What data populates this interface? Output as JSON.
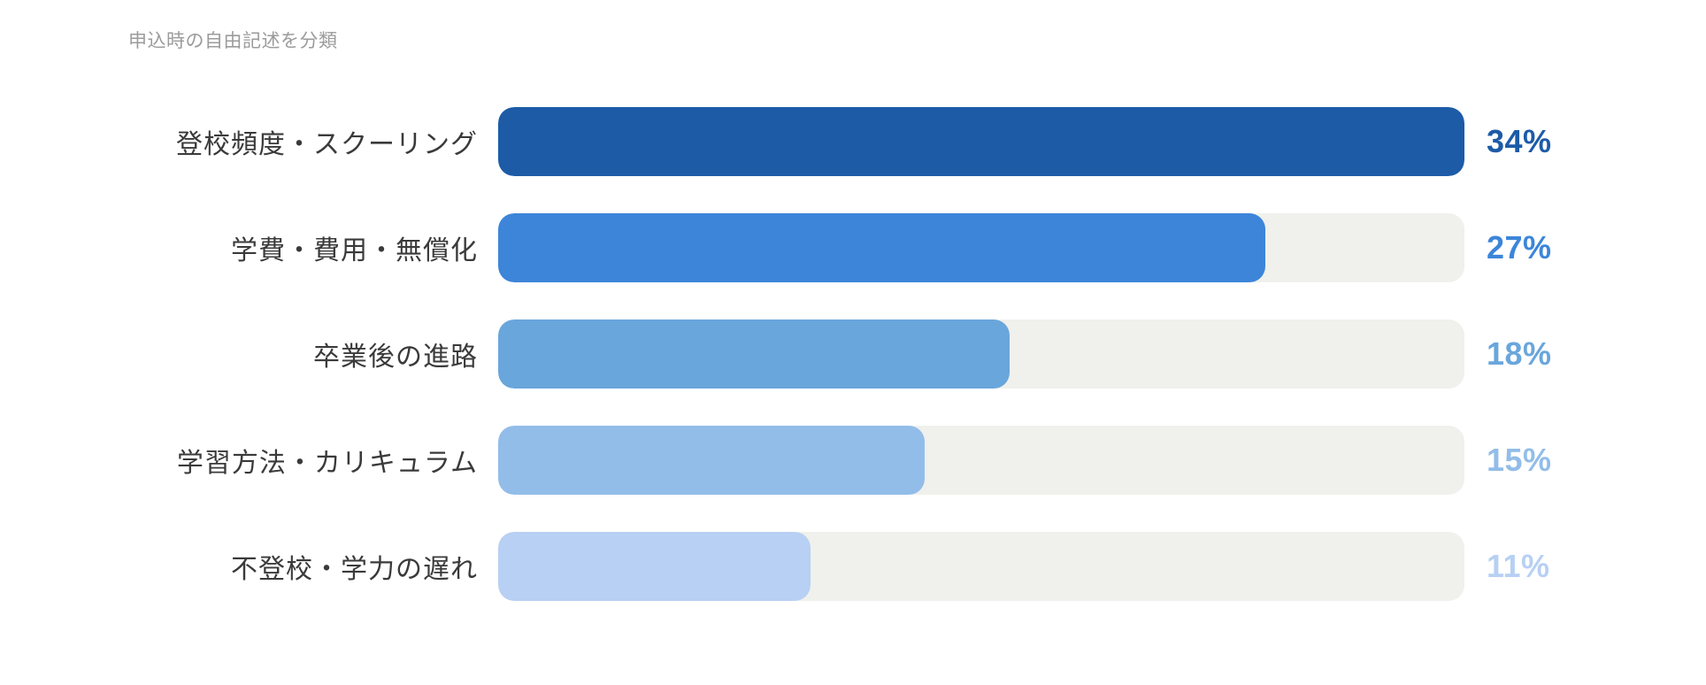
{
  "chart": {
    "title": "申込時の自由記述を分類",
    "bars": [
      {
        "label": "登校頻度・スクーリング",
        "value": 34,
        "value_label": "34%",
        "color": "#1d5ba7"
      },
      {
        "label": "学費・費用・無償化",
        "value": 27,
        "value_label": "27%",
        "color": "#3c85d9"
      },
      {
        "label": "卒業後の進路",
        "value": 18,
        "value_label": "18%",
        "color": "#69a6dc"
      },
      {
        "label": "学習方法・カリキュラム",
        "value": 15,
        "value_label": "15%",
        "color": "#92bde9"
      },
      {
        "label": "不登校・学力の遅れ",
        "value": 11,
        "value_label": "11%",
        "color": "#b7d0f3"
      }
    ],
    "track_color": "#f0f0ec",
    "label_color": "#3a3a3a",
    "title_color": "#9b9b9b"
  },
  "chart_data": {
    "type": "bar",
    "orientation": "horizontal",
    "title": "申込時の自由記述を分類",
    "categories": [
      "登校頻度・スクーリング",
      "学費・費用・無償化",
      "卒業後の進路",
      "学習方法・カリキュラム",
      "不登校・学力の遅れ"
    ],
    "values": [
      34,
      27,
      18,
      15,
      11
    ],
    "unit": "%",
    "value_labels": [
      "34%",
      "27%",
      "18%",
      "15%",
      "11%"
    ],
    "xlabel": "",
    "ylabel": "",
    "scale_max": 34,
    "grid": false,
    "legend": false,
    "bar_colors": [
      "#1d5ba7",
      "#3c85d9",
      "#69a6dc",
      "#92bde9",
      "#b7d0f3"
    ],
    "track_color": "#f0f0ec"
  }
}
